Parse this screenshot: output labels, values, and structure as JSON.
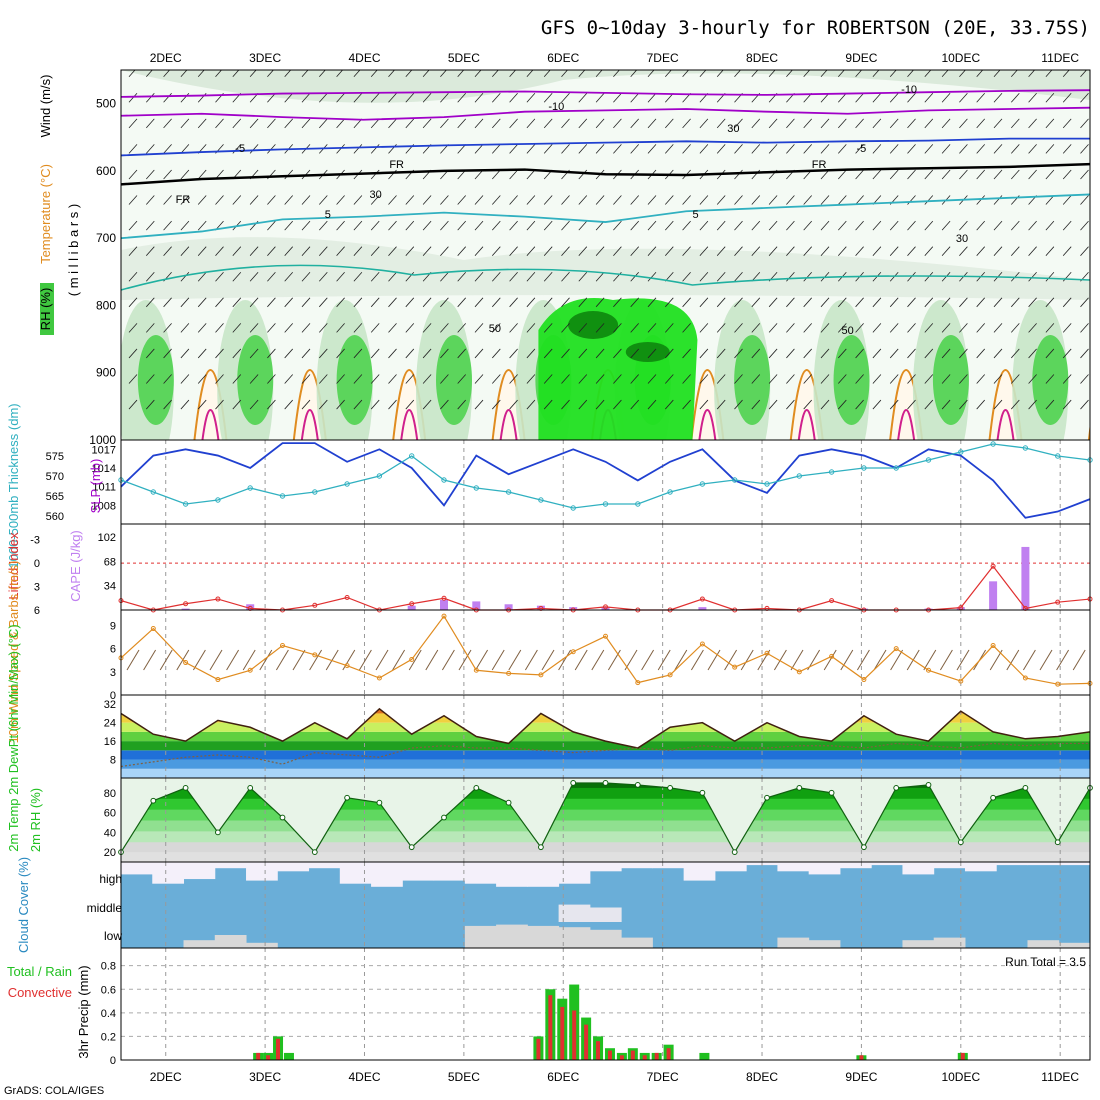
{
  "title": "GFS 0~10day 3-hourly for ROBERTSON (20E, 33.75S)",
  "footer": "GrADS: COLA/IGES",
  "colors": {
    "purple": "#a000c8",
    "blue": "#2040d0",
    "cyan": "#30b0c0",
    "orange": "#e08c20",
    "red": "#e03030",
    "green": "#20c020",
    "brown": "#806040",
    "sky": "#6aaed8",
    "lightgrey": "#d8d8d8",
    "magenta": "#d0208c",
    "teal": "#20b0a0"
  },
  "chart_data": [
    {
      "type": "line",
      "panel": "upper-air",
      "ylabel_parts": [
        "RH (%)",
        "Temperature (°C)",
        "Wind (m/s)"
      ],
      "ylabel_unit": "( m i l l i b a r s )",
      "ylim": [
        1000,
        450
      ],
      "yticks": [
        500,
        600,
        700,
        800,
        900,
        1000
      ],
      "contour_labels": [
        "-10",
        "-10",
        "-5",
        "-5",
        "FR",
        "FR",
        "FR",
        "5",
        "5",
        "30",
        "30",
        "50",
        "50",
        "30"
      ],
      "x_start": 1.55,
      "x_end": 11.3,
      "series": [
        {
          "name": "-10C isotherm",
          "values": [
            490,
            488,
            485,
            484,
            483,
            482,
            484,
            486,
            487,
            485,
            483,
            481,
            480
          ]
        },
        {
          "name": "-5C isotherm (upper)",
          "values": [
            518,
            515,
            520,
            524,
            520,
            512,
            510,
            508,
            512,
            515,
            510,
            508,
            506
          ]
        },
        {
          "name": "-5C isotherm",
          "values": [
            577,
            572,
            568,
            565,
            562,
            560,
            558,
            556,
            558,
            556,
            555,
            552,
            552
          ]
        },
        {
          "name": "freezing level",
          "values": [
            620,
            612,
            608,
            604,
            600,
            598,
            605,
            606,
            602,
            598,
            596,
            594,
            590
          ]
        },
        {
          "name": "5C isotherm",
          "values": [
            700,
            690,
            672,
            668,
            662,
            668,
            676,
            660,
            655,
            650,
            645,
            640,
            635
          ]
        }
      ]
    },
    {
      "type": "line",
      "panel": "thickness-slp",
      "ylabel_left": "1000-500mb Thickness (dm)",
      "ylabel_right": "SLP (mb)",
      "yticks_thickness": [
        560,
        565,
        570,
        575
      ],
      "yticks_slp": [
        1008,
        1011,
        1014,
        1017
      ],
      "series": [
        {
          "name": "SLP (mb)",
          "values": [
            1011,
            1016,
            1017,
            1016,
            1014,
            1018,
            1018,
            1015,
            1017,
            1014,
            1008,
            1016,
            1013,
            1015,
            1017,
            1015,
            1012,
            1015,
            1017,
            1012,
            1010,
            1016,
            1017,
            1016,
            1014,
            1017,
            1016,
            1012,
            1006,
            1007,
            1009
          ]
        },
        {
          "name": "1000-500mb Thickness (dm)",
          "values": [
            569,
            566,
            563,
            564,
            567,
            565,
            566,
            568,
            570,
            575,
            569,
            567,
            566,
            564,
            562,
            563,
            563,
            566,
            568,
            569,
            568,
            570,
            571,
            572,
            572,
            574,
            576,
            578,
            577,
            575,
            574
          ]
        }
      ]
    },
    {
      "type": "bar",
      "panel": "lifted-index-cape",
      "ylabel_left": "Lifted Index",
      "ylabel_right": "CAPE (J/kg)",
      "yticks_li": [
        "-3",
        "0",
        "3",
        "6"
      ],
      "yticks_cape": [
        34,
        68,
        102
      ],
      "series": [
        {
          "name": "Lifted Index",
          "values": [
            4.8,
            6.0,
            5.2,
            4.6,
            5.8,
            6.0,
            5.4,
            4.4,
            6.0,
            5.2,
            4.5,
            6.0,
            6.0,
            5.8,
            6.0,
            5.6,
            6.0,
            6.0,
            4.6,
            6.0,
            5.8,
            6.0,
            4.8,
            6.0,
            6.0,
            6.0,
            5.7,
            0.4,
            5.8,
            5.0,
            4.6
          ]
        },
        {
          "name": "CAPE (J/kg)",
          "values": [
            0,
            0,
            2,
            0,
            8,
            0,
            0,
            0,
            0,
            6,
            14,
            12,
            8,
            6,
            4,
            4,
            0,
            0,
            4,
            0,
            0,
            0,
            0,
            2,
            0,
            2,
            4,
            40,
            88,
            0,
            0
          ]
        }
      ]
    },
    {
      "type": "line",
      "panel": "10m-wind",
      "ylabel": "10m Wind Speed & Barbs (m/s)",
      "yticks": [
        0,
        3,
        6,
        9
      ],
      "series": [
        {
          "name": "10m wind speed (m/s)",
          "values": [
            4.8,
            8.6,
            4.2,
            2.0,
            3.2,
            6.4,
            5.2,
            3.8,
            2.2,
            4.6,
            10.2,
            3.2,
            2.8,
            2.6,
            5.6,
            7.6,
            1.6,
            2.6,
            6.6,
            3.6,
            5.4,
            3.0,
            5.0,
            2.0,
            6.0,
            3.2,
            1.8,
            6.4,
            2.2,
            1.4,
            1.5
          ]
        }
      ]
    },
    {
      "type": "area",
      "panel": "2m-temp",
      "ylabel": "2m Temp 2m DewPt (6hr Min/Max) (°C)",
      "yticks": [
        8,
        16,
        24,
        32
      ],
      "series": [
        {
          "name": "2m Temp (°C)",
          "values": [
            28,
            19,
            16,
            25,
            22,
            16,
            24,
            17,
            30,
            19,
            27,
            18,
            15,
            28,
            20,
            16,
            13,
            22,
            24,
            16,
            24,
            18,
            16,
            27,
            19,
            16,
            29,
            20,
            17,
            18,
            20
          ]
        },
        {
          "name": "2m DewPt (°C)",
          "values": [
            5,
            7,
            9,
            10,
            9,
            6,
            11,
            10,
            9,
            13,
            14,
            13,
            13,
            12,
            11,
            12,
            13,
            12,
            14,
            13,
            13,
            14,
            14,
            13,
            15,
            14,
            13,
            15,
            14,
            15,
            15
          ]
        }
      ]
    },
    {
      "type": "area",
      "panel": "2m-rh",
      "ylabel": "2m RH (%)",
      "yticks": [
        20,
        40,
        60,
        80
      ],
      "series": [
        {
          "name": "2m RH (%)",
          "values": [
            20,
            72,
            85,
            40,
            85,
            55,
            20,
            75,
            70,
            25,
            55,
            85,
            70,
            25,
            90,
            90,
            88,
            85,
            80,
            20,
            75,
            85,
            80,
            25,
            85,
            88,
            30,
            75,
            85,
            30,
            85
          ]
        }
      ]
    },
    {
      "type": "bar",
      "panel": "cloud-cover",
      "ylabel": "Cloud Cover (%)",
      "levels": [
        "high",
        "middle",
        "low"
      ],
      "series": [
        {
          "name": "high cloud (%)",
          "values": [
            40,
            70,
            55,
            20,
            60,
            30,
            20,
            70,
            80,
            60,
            60,
            70,
            80,
            80,
            70,
            30,
            20,
            20,
            60,
            30,
            10,
            30,
            40,
            20,
            10,
            40,
            20,
            30,
            10,
            10,
            10
          ]
        },
        {
          "name": "middle cloud (%)",
          "values": [
            0,
            0,
            0,
            0,
            0,
            0,
            0,
            0,
            0,
            0,
            0,
            0,
            0,
            0,
            60,
            50,
            0,
            0,
            0,
            0,
            0,
            0,
            0,
            0,
            0,
            0,
            0,
            0,
            0,
            0,
            0
          ]
        },
        {
          "name": "low cloud (%)",
          "values": [
            0,
            0,
            30,
            50,
            20,
            0,
            0,
            0,
            0,
            0,
            0,
            85,
            90,
            85,
            80,
            70,
            40,
            0,
            0,
            0,
            0,
            40,
            30,
            0,
            0,
            30,
            40,
            0,
            0,
            30,
            20
          ]
        }
      ]
    },
    {
      "type": "bar",
      "panel": "precip",
      "ylabel_left": "3hr Precip (mm)",
      "ylabel_legend": [
        "Total / Rain",
        "Convective"
      ],
      "annotation": "Run Total = 3.5",
      "yticks": [
        "0",
        "0.2",
        "0.4",
        "0.6",
        "0.8"
      ],
      "bars": [
        {
          "day": 2.93,
          "total": 0.06,
          "convective": 0.06
        },
        {
          "day": 3.03,
          "total": 0.06,
          "convective": 0.04
        },
        {
          "day": 3.13,
          "total": 0.2,
          "convective": 0.18
        },
        {
          "day": 3.24,
          "total": 0.06,
          "convective": 0.0
        },
        {
          "day": 5.75,
          "total": 0.2,
          "convective": 0.18
        },
        {
          "day": 5.87,
          "total": 0.6,
          "convective": 0.55
        },
        {
          "day": 5.99,
          "total": 0.52,
          "convective": 0.45
        },
        {
          "day": 6.11,
          "total": 0.64,
          "convective": 0.42
        },
        {
          "day": 6.23,
          "total": 0.36,
          "convective": 0.3
        },
        {
          "day": 6.35,
          "total": 0.2,
          "convective": 0.16
        },
        {
          "day": 6.47,
          "total": 0.1,
          "convective": 0.08
        },
        {
          "day": 6.59,
          "total": 0.06,
          "convective": 0.04
        },
        {
          "day": 6.7,
          "total": 0.1,
          "convective": 0.08
        },
        {
          "day": 6.82,
          "total": 0.06,
          "convective": 0.04
        },
        {
          "day": 6.94,
          "total": 0.06,
          "convective": 0.06
        },
        {
          "day": 7.06,
          "total": 0.13,
          "convective": 0.1
        },
        {
          "day": 7.42,
          "total": 0.06,
          "convective": 0.0
        },
        {
          "day": 9.0,
          "total": 0.04,
          "convective": 0.04
        },
        {
          "day": 10.02,
          "total": 0.06,
          "convective": 0.06
        }
      ]
    }
  ],
  "day_labels": [
    "2DEC",
    "3DEC",
    "4DEC",
    "5DEC",
    "6DEC",
    "7DEC",
    "8DEC",
    "9DEC",
    "10DEC",
    "11DEC"
  ]
}
